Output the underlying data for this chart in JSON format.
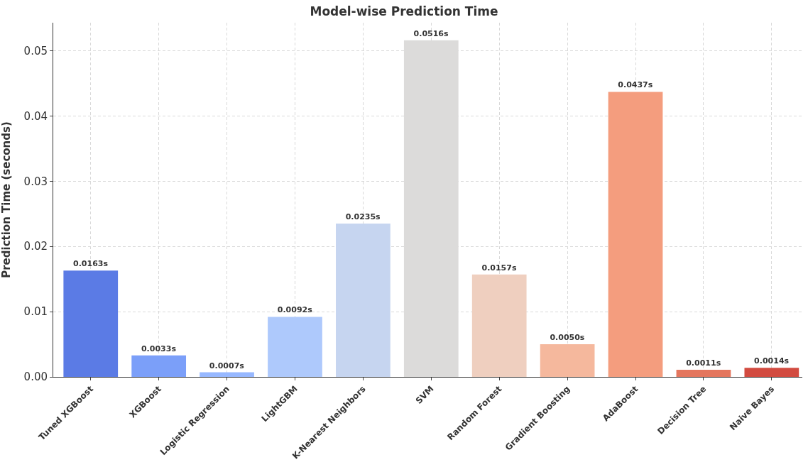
{
  "chart_data": {
    "type": "bar",
    "title": "Model-wise Prediction Time",
    "ylabel": "Prediction Time (seconds)",
    "categories": [
      "Tuned XGBoost",
      "XGBoost",
      "Logistic Regression",
      "LightGBM",
      "K-Nearest Neighbors",
      "SVM",
      "Random Forest",
      "Gradient Boosting",
      "AdaBoost",
      "Decision Tree",
      "Naive Bayes"
    ],
    "values": [
      0.0163,
      0.0033,
      0.0007,
      0.0092,
      0.0235,
      0.0516,
      0.0157,
      0.005,
      0.0437,
      0.0011,
      0.0014
    ],
    "value_labels": [
      "0.0163s",
      "0.0033s",
      "0.0007s",
      "0.0092s",
      "0.0235s",
      "0.0516s",
      "0.0157s",
      "0.0050s",
      "0.0437s",
      "0.0011s",
      "0.0014s"
    ],
    "colors": [
      "#5b7be5",
      "#7b9ff9",
      "#97b8ff",
      "#aec9fc",
      "#c6d5f0",
      "#dcdbda",
      "#efcfbf",
      "#f5b89d",
      "#f49d7e",
      "#e4765e",
      "#d24b40"
    ],
    "ylim": [
      0,
      0.0543
    ],
    "yticks": [
      {
        "value": 0,
        "label": "0.00"
      },
      {
        "value": 0.01,
        "label": "0.01"
      },
      {
        "value": 0.02,
        "label": "0.02"
      },
      {
        "value": 0.03,
        "label": "0.03"
      },
      {
        "value": 0.04,
        "label": "0.04"
      },
      {
        "value": 0.05,
        "label": "0.05"
      }
    ],
    "grid": true
  }
}
